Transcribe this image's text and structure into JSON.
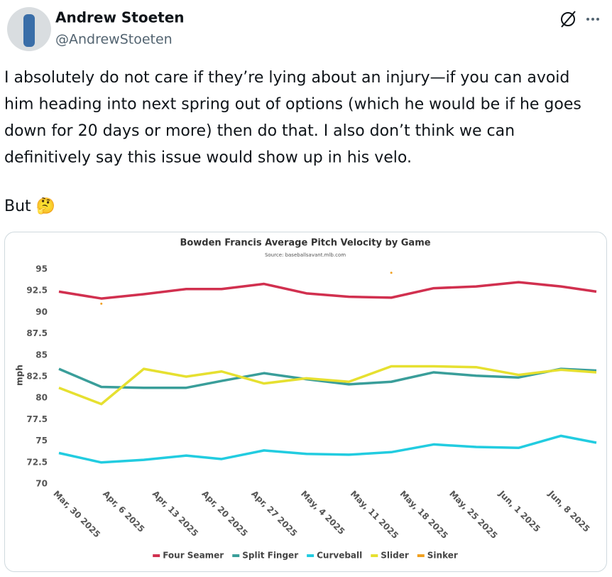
{
  "tweet": {
    "name": "Andrew Stoeten",
    "handle": "@AndrewStoeten",
    "text_lines": [
      "I absolutely do not care if they’re lying about an injury—if you can avoid",
      "him heading into next spring out of options (which he would be if he goes",
      "down for 20 days or more) then do that. I also don’t think we can",
      "definitively say this issue would show up in his velo."
    ],
    "text_end": "But 🤔"
  },
  "chart_data": {
    "type": "line",
    "title": "Bowden Francis Average Pitch Velocity by Game",
    "subtitle": "Source: baseballsavant.mlb.com",
    "ylabel": "mph",
    "grid": false,
    "legend": "bottom",
    "x": [
      "2025-03-30",
      "2025-04-05",
      "2025-04-11",
      "2025-04-17",
      "2025-04-22",
      "2025-04-28",
      "2025-05-04",
      "2025-05-10",
      "2025-05-16",
      "2025-05-22",
      "2025-05-28",
      "2025-06-03",
      "2025-06-09",
      "2025-06-14"
    ],
    "xlim": [
      "2025-03-30",
      "2025-06-14"
    ],
    "xticks": [
      {
        "value": "2025-03-30",
        "label": "Mar, 30 2025"
      },
      {
        "value": "2025-04-06",
        "label": "Apr, 6 2025"
      },
      {
        "value": "2025-04-13",
        "label": "Apr, 13 2025"
      },
      {
        "value": "2025-04-20",
        "label": "Apr, 20 2025"
      },
      {
        "value": "2025-04-27",
        "label": "Apr, 27 2025"
      },
      {
        "value": "2025-05-04",
        "label": "May, 4 2025"
      },
      {
        "value": "2025-05-11",
        "label": "May, 11 2025"
      },
      {
        "value": "2025-05-18",
        "label": "May, 18 2025"
      },
      {
        "value": "2025-05-25",
        "label": "May, 25 2025"
      },
      {
        "value": "2025-06-01",
        "label": "Jun, 1 2025"
      },
      {
        "value": "2025-06-08",
        "label": "Jun, 8 2025"
      }
    ],
    "ylim": [
      70,
      95
    ],
    "yticks": [
      70,
      72.5,
      75,
      77.5,
      80,
      82.5,
      85,
      87.5,
      90,
      92.5,
      95
    ],
    "series": [
      {
        "name": "Four Seamer",
        "color": "#d1304f",
        "values": [
          92.4,
          91.6,
          92.1,
          92.7,
          92.7,
          93.3,
          92.2,
          91.8,
          91.7,
          92.8,
          93.0,
          93.5,
          93.0,
          92.4
        ]
      },
      {
        "name": "Split Finger",
        "color": "#3a9e9a",
        "values": [
          83.4,
          81.3,
          81.2,
          81.2,
          82.0,
          82.9,
          82.2,
          81.6,
          81.9,
          83.0,
          82.6,
          82.4,
          83.4,
          83.2
        ]
      },
      {
        "name": "Curveball",
        "color": "#22cce0",
        "values": [
          73.6,
          72.5,
          72.8,
          73.3,
          72.9,
          73.9,
          73.5,
          73.4,
          73.7,
          74.6,
          74.3,
          74.2,
          75.6,
          74.8
        ]
      },
      {
        "name": "Slider",
        "color": "#e6e030",
        "values": [
          81.2,
          79.3,
          83.4,
          82.5,
          83.1,
          81.7,
          82.3,
          81.9,
          83.7,
          83.7,
          83.6,
          82.7,
          83.3,
          83.0
        ]
      },
      {
        "name": "Sinker",
        "color": "#f0a020",
        "values": [
          null,
          91.0,
          null,
          null,
          null,
          null,
          null,
          null,
          94.6,
          null,
          null,
          null,
          null,
          null
        ]
      }
    ]
  }
}
